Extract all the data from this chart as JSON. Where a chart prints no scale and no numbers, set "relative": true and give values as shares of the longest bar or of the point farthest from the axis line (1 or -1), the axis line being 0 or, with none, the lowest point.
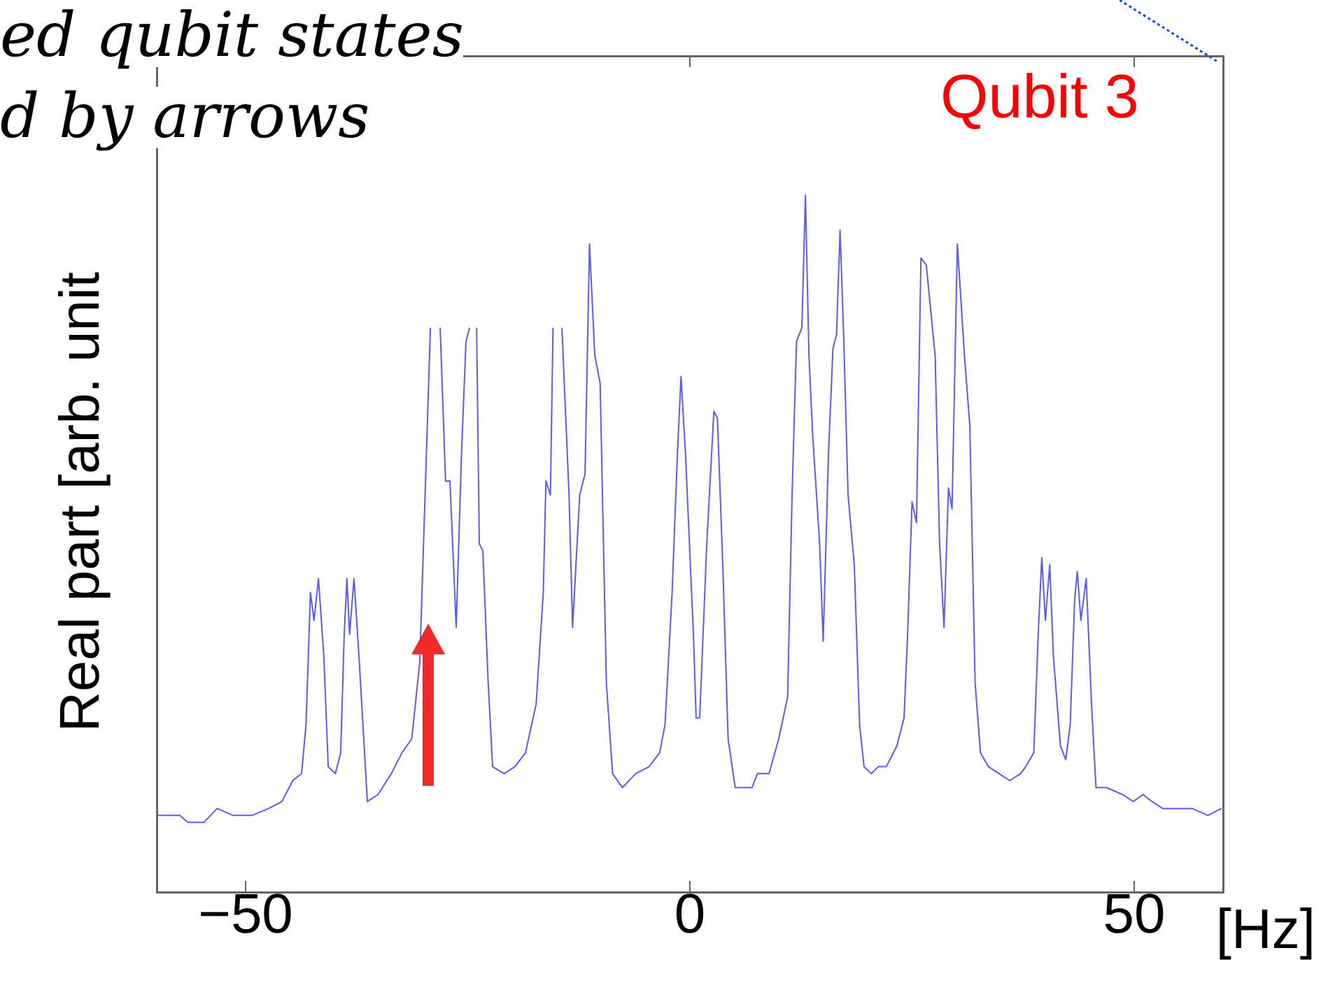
{
  "chart_data": {
    "type": "line",
    "relative": true,
    "xlabel": "[Hz]",
    "ylabel": "Real part [arb. unit",
    "annotations": [
      "ed qubit states",
      "d by arrows",
      "Qubit 3"
    ],
    "xlim": [
      -60,
      60
    ],
    "xticks": [
      -50,
      0,
      50
    ],
    "grid": false,
    "legend": false,
    "marker": "none",
    "line_style": "solid",
    "series": [
      {
        "color": "#5a5aff",
        "x": [
          -60,
          -58.9,
          -57.4,
          -56.5,
          -54.7,
          -53.2,
          -51.4,
          -49.3,
          -47.4,
          -45.9,
          -44.7,
          -43.7,
          -43.2,
          -42.7,
          -42.3,
          -41.8,
          -41.2,
          -40.7,
          -39.9,
          -39.3,
          -38.9,
          -38.6,
          -38.3,
          -37.8,
          -37.2,
          -36.3,
          -35.1,
          -33.6,
          -32.4,
          -31.3,
          -30.4,
          -29.9,
          -29.2,
          -28.6,
          -28.1,
          -27.5,
          -27,
          -26.3,
          -25.7,
          -25.2,
          -24.8,
          -24.4,
          -24,
          -23.7,
          -23.3,
          -22.7,
          -22.2,
          -20.9,
          -19.7,
          -18.5,
          -17.3,
          -16.5,
          -16.2,
          -15.7,
          -15.4,
          -14.9,
          -14.4,
          -13.6,
          -13.2,
          -12.4,
          -11.8,
          -11.3,
          -10.7,
          -10.1,
          -9.4,
          -8.7,
          -7.6,
          -6.1,
          -4.6,
          -3.4,
          -2.8,
          -2,
          -1.4,
          -1,
          -0.5,
          0.4,
          0.7,
          1.1,
          1.9,
          2.7,
          3.1,
          3.7,
          4.3,
          5.1,
          7,
          7.6,
          8.9,
          10,
          11,
          11.5,
          12,
          12.6,
          13,
          13.4,
          13.8,
          14.6,
          15,
          15.6,
          16.1,
          16.5,
          16.9,
          17.3,
          17.8,
          18.5,
          19.1,
          19.6,
          20.4,
          21.2,
          22.1,
          23.3,
          24.1,
          24.5,
          25,
          25.5,
          26,
          26.6,
          27.6,
          28.1,
          28.6,
          29.1,
          29.5,
          30.1,
          30.9,
          31.5,
          32.1,
          32.7,
          33.6,
          34.8,
          36,
          37.2,
          37.8,
          38.7,
          39.2,
          39.6,
          40,
          40.5,
          40.9,
          41.7,
          42.3,
          42.8,
          43.3,
          43.6,
          44,
          44.6,
          45.2,
          45.7,
          46.9,
          48.7,
          49.9,
          51,
          52,
          53.2,
          54.7,
          56.5,
          58.3,
          59.8
        ],
        "values": [
          0.11,
          0.11,
          0.11,
          0.1,
          0.1,
          0.12,
          0.11,
          0.11,
          0.12,
          0.13,
          0.16,
          0.17,
          0.24,
          0.43,
          0.39,
          0.45,
          0.34,
          0.18,
          0.17,
          0.2,
          0.37,
          0.45,
          0.37,
          0.45,
          0.33,
          0.13,
          0.14,
          0.17,
          0.2,
          0.22,
          0.33,
          0.53,
          0.81,
          null,
          0.81,
          0.59,
          0.59,
          0.38,
          0.63,
          0.79,
          0.81,
          null,
          0.81,
          0.5,
          0.49,
          0.3,
          0.18,
          0.17,
          0.18,
          0.2,
          0.27,
          0.43,
          0.59,
          0.57,
          0.81,
          null,
          0.81,
          0.57,
          0.38,
          0.57,
          0.6,
          0.93,
          0.77,
          0.73,
          0.3,
          0.17,
          0.15,
          0.17,
          0.18,
          0.2,
          0.24,
          0.43,
          0.63,
          0.74,
          0.63,
          0.37,
          0.25,
          0.25,
          0.5,
          0.69,
          0.68,
          0.47,
          0.22,
          0.15,
          0.15,
          0.17,
          0.17,
          0.22,
          0.28,
          0.57,
          0.79,
          0.81,
          1,
          0.77,
          0.66,
          0.5,
          0.36,
          0.63,
          0.78,
          0.8,
          0.95,
          0.8,
          0.57,
          0.47,
          0.24,
          0.18,
          0.17,
          0.18,
          0.18,
          0.21,
          0.25,
          0.37,
          0.56,
          0.53,
          0.91,
          0.9,
          0.77,
          0.5,
          0.38,
          0.58,
          0.55,
          0.93,
          0.77,
          0.67,
          0.3,
          0.2,
          0.18,
          0.17,
          0.16,
          0.17,
          0.18,
          0.2,
          0.37,
          0.48,
          0.39,
          0.47,
          0.34,
          0.21,
          0.19,
          0.24,
          0.42,
          0.46,
          0.39,
          0.45,
          0.27,
          0.15,
          0.15,
          0.14,
          0.13,
          0.14,
          0.13,
          0.12,
          0.12,
          0.12,
          0.11,
          0.12
        ]
      }
    ]
  }
}
